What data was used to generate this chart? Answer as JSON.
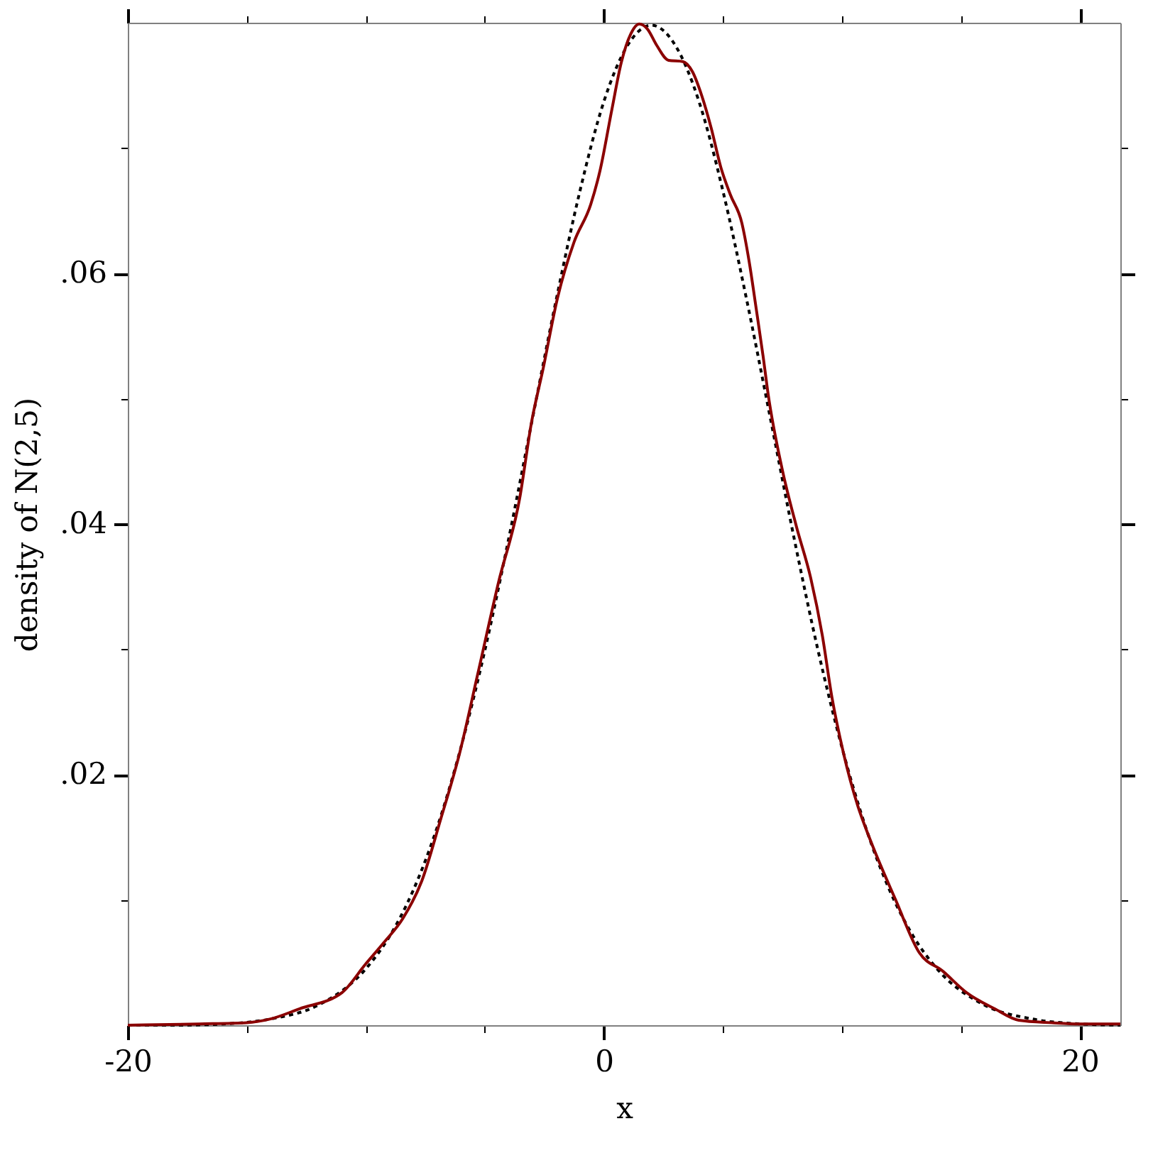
{
  "chart_data": {
    "type": "line",
    "xlabel": "x",
    "ylabel": "density of N(2,5)",
    "xlim": [
      -20,
      21.7
    ],
    "ylim": [
      0,
      0.08
    ],
    "xticks": [
      -20,
      {
        "value": -15,
        "label": null
      },
      {
        "value": -10,
        "label": null
      },
      {
        "value": -5,
        "label": null
      },
      0,
      {
        "value": 5,
        "label": null
      },
      {
        "value": 10,
        "label": null
      },
      {
        "value": 15,
        "label": null
      },
      20
    ],
    "yticks": [
      {
        "value": 0.01,
        "label": null
      },
      {
        "value": 0.02,
        "label": ".02"
      },
      {
        "value": 0.03,
        "label": null
      },
      {
        "value": 0.04,
        "label": ".04"
      },
      {
        "value": 0.05,
        "label": null
      },
      {
        "value": 0.06,
        "label": ".06"
      },
      {
        "value": 0.07,
        "label": null
      }
    ],
    "series": [
      {
        "color": "#000000",
        "line_style": "dotted",
        "x": [
          -20,
          -18,
          -16,
          -14,
          -12,
          -10,
          -9,
          -8,
          -7,
          -6,
          -5,
          -4,
          -3,
          -2,
          -1,
          0,
          1,
          2,
          3,
          4,
          5,
          6,
          7,
          8,
          9,
          10,
          11,
          12,
          13,
          14,
          16,
          18,
          20,
          21.7
        ],
        "values": [
          0.0,
          0.0,
          0.0001,
          0.0005,
          0.0016,
          0.0045,
          0.0071,
          0.0108,
          0.0158,
          0.0222,
          0.0299,
          0.0388,
          0.0484,
          0.0579,
          0.0666,
          0.0737,
          0.0782,
          0.0798,
          0.0782,
          0.0737,
          0.0666,
          0.0579,
          0.0484,
          0.0388,
          0.0299,
          0.0222,
          0.0158,
          0.0108,
          0.0071,
          0.0045,
          0.0016,
          0.0005,
          0.0001,
          0.0
        ]
      },
      {
        "color": "#8b0000",
        "line_style": "solid",
        "x": [
          -20,
          -17,
          -15,
          -14,
          -12.8,
          -11,
          -10,
          -9.24,
          -8.45,
          -7.65,
          -6.86,
          -6.06,
          -5.3,
          -4.43,
          -3.54,
          -3.04,
          -2.55,
          -1.95,
          -1.25,
          -0.55,
          -0.16,
          0.34,
          0.73,
          1.13,
          1.49,
          1.83,
          2.22,
          2.72,
          3.32,
          3.72,
          4.11,
          4.51,
          4.91,
          5.31,
          5.8,
          6.1,
          6.4,
          6.69,
          6.9,
          7.49,
          8.09,
          8.69,
          9.18,
          9.58,
          10.07,
          10.67,
          11.17,
          12.26,
          13.25,
          14.25,
          15.24,
          16.43,
          17.43,
          18.82,
          20.01,
          21.7
        ],
        "values": [
          0.0,
          0.0001,
          0.0002,
          0.0005,
          0.0013,
          0.0026,
          0.0049,
          0.0066,
          0.0085,
          0.0115,
          0.0164,
          0.0217,
          0.028,
          0.0353,
          0.042,
          0.0481,
          0.0524,
          0.058,
          0.0625,
          0.0655,
          0.0682,
          0.0731,
          0.0768,
          0.0791,
          0.0799,
          0.0795,
          0.0782,
          0.077,
          0.0769,
          0.0761,
          0.0742,
          0.0716,
          0.0685,
          0.0663,
          0.064,
          0.061,
          0.0572,
          0.0534,
          0.0504,
          0.0444,
          0.0398,
          0.0357,
          0.0311,
          0.0262,
          0.0217,
          0.0175,
          0.0149,
          0.01,
          0.0058,
          0.0043,
          0.0026,
          0.0013,
          0.0004,
          0.0002,
          0.0001,
          0.0001
        ]
      }
    ]
  }
}
